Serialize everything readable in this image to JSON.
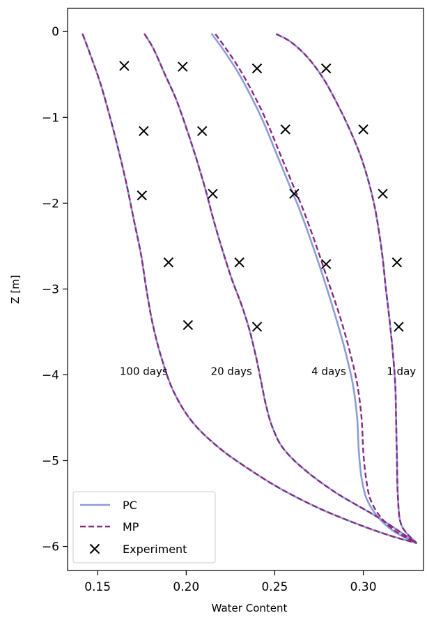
{
  "chart_data": {
    "type": "line",
    "title": "",
    "xlabel": "Water Content",
    "ylabel": "Z [m]",
    "xlim": [
      0.133,
      0.334
    ],
    "ylim": [
      -6.28,
      0.27
    ],
    "xticks": [
      0.15,
      0.2,
      0.25,
      0.3
    ],
    "xtick_labels": [
      "0.15",
      "0.20",
      "0.25",
      "0.30"
    ],
    "yticks": [
      0,
      -1,
      -2,
      -3,
      -4,
      -5,
      -6
    ],
    "ytick_labels": [
      "0",
      "−1",
      "−2",
      "−3",
      "−4",
      "−5",
      "−6"
    ],
    "grid": false,
    "legend_position": "lower-left",
    "legend": [
      {
        "label": "PC",
        "style": "solid"
      },
      {
        "label": "MP",
        "style": "dashed"
      },
      {
        "label": "Experiment",
        "style": "marker-x"
      }
    ],
    "colors": {
      "pc": "#8b9dd8",
      "mp": "#882a7e",
      "experiment": "#000000"
    },
    "annotations": [
      {
        "text": "100 days",
        "x": 0.176,
        "y": -3.95
      },
      {
        "text": "20 days",
        "x": 0.2255,
        "y": -3.95
      },
      {
        "text": "4 days",
        "x": 0.2805,
        "y": -3.95
      },
      {
        "text": "1 day",
        "x": 0.3215,
        "y": -3.95
      }
    ],
    "series": [
      {
        "name": "PC",
        "curve": "100 days",
        "x": [
          0.1415,
          0.1455,
          0.1515,
          0.157,
          0.162,
          0.1665,
          0.1705,
          0.1745,
          0.1775,
          0.181,
          0.186,
          0.193,
          0.2035,
          0.2185,
          0.2355,
          0.2535,
          0.2745,
          0.2955,
          0.3145,
          0.33
        ],
        "y": [
          -0.03,
          -0.25,
          -0.6,
          -1.0,
          -1.4,
          -1.8,
          -2.2,
          -2.6,
          -3.0,
          -3.4,
          -3.8,
          -4.2,
          -4.55,
          -4.85,
          -5.1,
          -5.33,
          -5.55,
          -5.73,
          -5.87,
          -5.96
        ]
      },
      {
        "name": "MP",
        "curve": "100 days",
        "x": [
          0.1415,
          0.1455,
          0.1515,
          0.157,
          0.162,
          0.1665,
          0.1705,
          0.1745,
          0.1775,
          0.181,
          0.186,
          0.193,
          0.2035,
          0.2185,
          0.2355,
          0.2535,
          0.2745,
          0.2955,
          0.3145,
          0.33
        ],
        "y": [
          -0.03,
          -0.25,
          -0.6,
          -1.0,
          -1.4,
          -1.8,
          -2.2,
          -2.6,
          -3.0,
          -3.4,
          -3.8,
          -4.2,
          -4.55,
          -4.85,
          -5.1,
          -5.33,
          -5.55,
          -5.73,
          -5.87,
          -5.96
        ]
      },
      {
        "name": "PC",
        "curve": "20 days",
        "x": [
          0.1765,
          0.1815,
          0.188,
          0.1945,
          0.2005,
          0.206,
          0.211,
          0.2155,
          0.2205,
          0.226,
          0.2315,
          0.236,
          0.2395,
          0.2425,
          0.245,
          0.2485,
          0.2545,
          0.2665,
          0.285,
          0.309,
          0.33
        ],
        "y": [
          -0.03,
          -0.2,
          -0.5,
          -0.8,
          -1.15,
          -1.5,
          -1.85,
          -2.2,
          -2.55,
          -2.9,
          -3.2,
          -3.5,
          -3.8,
          -4.1,
          -4.35,
          -4.6,
          -4.85,
          -5.1,
          -5.38,
          -5.67,
          -5.96
        ]
      },
      {
        "name": "MP",
        "curve": "20 days",
        "x": [
          0.1765,
          0.1815,
          0.188,
          0.1945,
          0.2005,
          0.206,
          0.211,
          0.2155,
          0.2205,
          0.226,
          0.2315,
          0.236,
          0.2395,
          0.2425,
          0.245,
          0.2485,
          0.2545,
          0.2665,
          0.285,
          0.309,
          0.33
        ],
        "y": [
          -0.03,
          -0.2,
          -0.5,
          -0.8,
          -1.15,
          -1.5,
          -1.85,
          -2.2,
          -2.55,
          -2.9,
          -3.2,
          -3.5,
          -3.8,
          -4.1,
          -4.35,
          -4.6,
          -4.85,
          -5.1,
          -5.38,
          -5.67,
          -5.96
        ]
      },
      {
        "name": "PC",
        "curve": "4 days",
        "x": [
          0.2145,
          0.2205,
          0.2285,
          0.2365,
          0.2435,
          0.2505,
          0.2575,
          0.2645,
          0.2715,
          0.278,
          0.284,
          0.2895,
          0.294,
          0.2965,
          0.2975,
          0.299,
          0.302,
          0.308,
          0.317,
          0.33
        ],
        "y": [
          -0.03,
          -0.2,
          -0.45,
          -0.75,
          -1.05,
          -1.4,
          -1.75,
          -2.1,
          -2.5,
          -2.9,
          -3.3,
          -3.7,
          -4.1,
          -4.5,
          -4.9,
          -5.2,
          -5.45,
          -5.65,
          -5.82,
          -5.96
        ]
      },
      {
        "name": "MP",
        "curve": "4 days",
        "x": [
          0.2165,
          0.2225,
          0.2305,
          0.2385,
          0.2455,
          0.2525,
          0.2595,
          0.2665,
          0.2735,
          0.28,
          0.2865,
          0.292,
          0.2965,
          0.299,
          0.3,
          0.3015,
          0.304,
          0.3095,
          0.318,
          0.33
        ],
        "y": [
          -0.03,
          -0.2,
          -0.45,
          -0.75,
          -1.05,
          -1.4,
          -1.75,
          -2.1,
          -2.5,
          -2.9,
          -3.3,
          -3.7,
          -4.1,
          -4.5,
          -4.9,
          -5.2,
          -5.45,
          -5.65,
          -5.82,
          -5.96
        ]
      },
      {
        "name": "PC",
        "curve": "1 day",
        "x": [
          0.251,
          0.259,
          0.2685,
          0.2775,
          0.2855,
          0.2925,
          0.2985,
          0.303,
          0.3065,
          0.309,
          0.311,
          0.3125,
          0.3145,
          0.3165,
          0.318,
          0.3185,
          0.319,
          0.3195,
          0.3215,
          0.33
        ],
        "y": [
          -0.03,
          -0.12,
          -0.3,
          -0.55,
          -0.85,
          -1.15,
          -1.45,
          -1.75,
          -2.05,
          -2.35,
          -2.65,
          -2.95,
          -3.3,
          -3.7,
          -4.1,
          -4.5,
          -5.0,
          -5.4,
          -5.75,
          -5.96
        ]
      },
      {
        "name": "MP",
        "curve": "1 day",
        "x": [
          0.251,
          0.259,
          0.2685,
          0.2775,
          0.2855,
          0.2925,
          0.2985,
          0.303,
          0.3065,
          0.309,
          0.311,
          0.3125,
          0.3145,
          0.3165,
          0.318,
          0.3185,
          0.319,
          0.3195,
          0.3215,
          0.33
        ],
        "y": [
          -0.03,
          -0.12,
          -0.3,
          -0.55,
          -0.85,
          -1.15,
          -1.45,
          -1.75,
          -2.05,
          -2.35,
          -2.65,
          -2.95,
          -3.3,
          -3.7,
          -4.1,
          -4.5,
          -5.0,
          -5.4,
          -5.75,
          -5.96
        ]
      },
      {
        "name": "Experiment",
        "points": [
          {
            "x": 0.165,
            "y": -0.4
          },
          {
            "x": 0.176,
            "y": -1.16
          },
          {
            "x": 0.175,
            "y": -1.91
          },
          {
            "x": 0.19,
            "y": -2.69
          },
          {
            "x": 0.201,
            "y": -3.42
          },
          {
            "x": 0.198,
            "y": -0.41
          },
          {
            "x": 0.209,
            "y": -1.16
          },
          {
            "x": 0.215,
            "y": -1.89
          },
          {
            "x": 0.23,
            "y": -2.69
          },
          {
            "x": 0.24,
            "y": -3.44
          },
          {
            "x": 0.24,
            "y": -0.43
          },
          {
            "x": 0.256,
            "y": -1.14
          },
          {
            "x": 0.261,
            "y": -1.89
          },
          {
            "x": 0.279,
            "y": -2.71
          },
          {
            "x": 0.279,
            "y": -0.43
          },
          {
            "x": 0.3,
            "y": -1.14
          },
          {
            "x": 0.311,
            "y": -1.89
          },
          {
            "x": 0.319,
            "y": -2.69
          },
          {
            "x": 0.32,
            "y": -3.44
          }
        ]
      }
    ]
  }
}
